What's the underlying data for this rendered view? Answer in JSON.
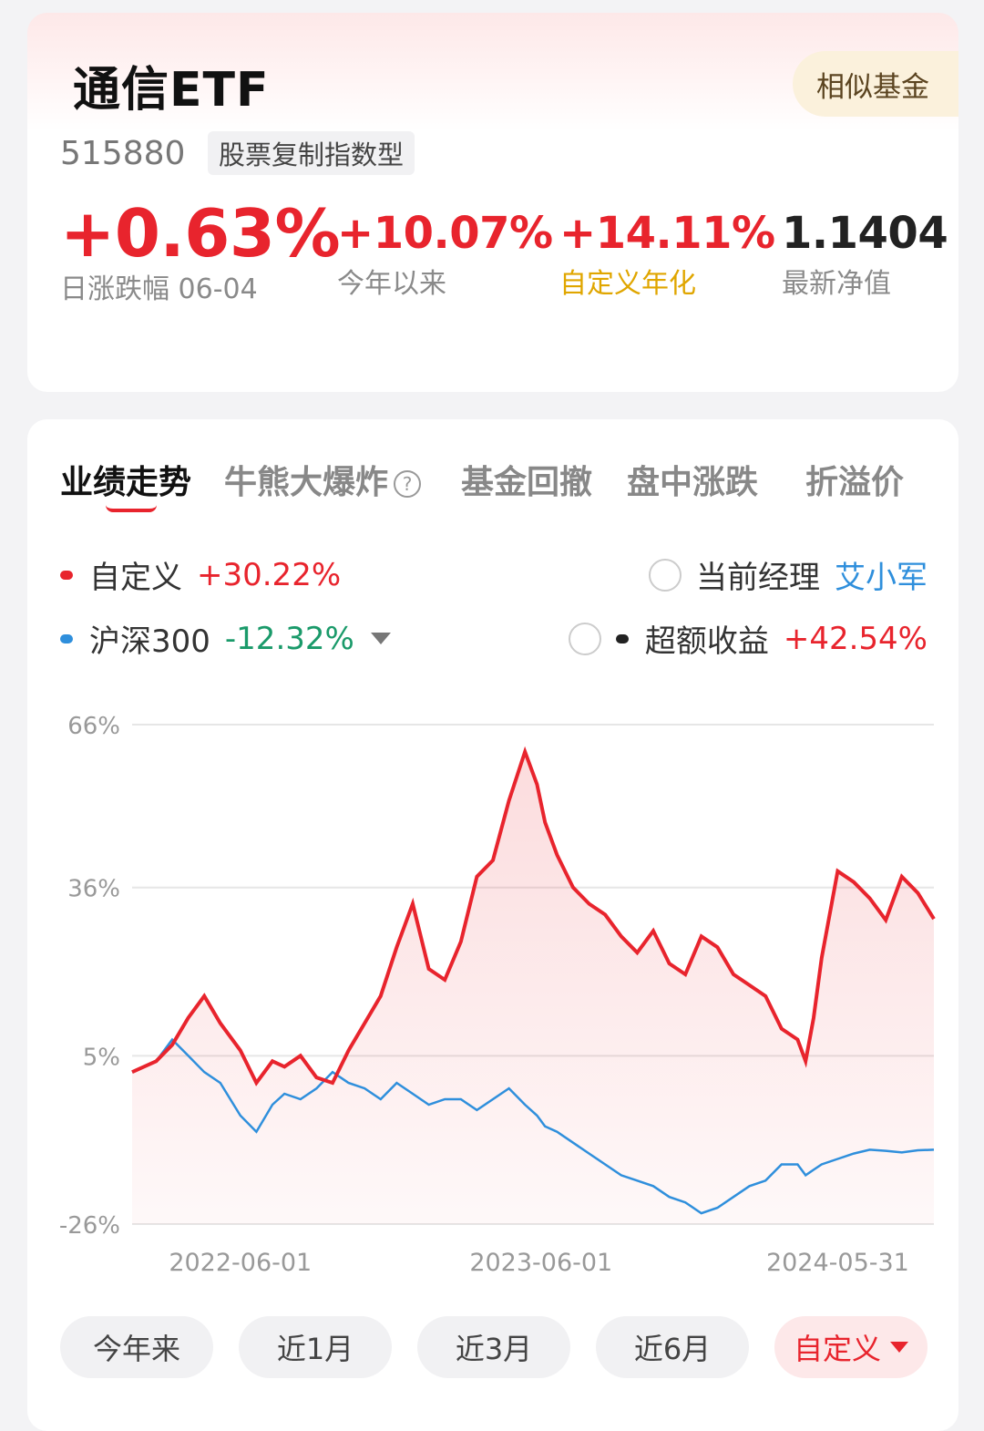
{
  "fund": {
    "name": "通信ETF",
    "similar_button": "相似基金",
    "code": "515880",
    "type": "股票复制指数型"
  },
  "metrics": [
    {
      "value": "+0.63%",
      "label": "日涨跌幅 06-04"
    },
    {
      "value": "+10.07%",
      "label": "今年以来"
    },
    {
      "value": "+14.11%",
      "label": "自定义年化"
    },
    {
      "value": "1.1404",
      "label": "最新净值"
    }
  ],
  "tabs": [
    "业绩走势",
    "牛熊大爆炸",
    "基金回撤",
    "盘中涨跌",
    "折溢价"
  ],
  "legend": {
    "custom": {
      "label": "自定义",
      "value": "+30.22%"
    },
    "index": {
      "label": "沪深300",
      "value": "-12.32%"
    },
    "manager": {
      "label": "当前经理",
      "name": "艾小军"
    },
    "excess": {
      "label": "超额收益",
      "value": "+42.54%"
    }
  },
  "ranges": [
    "今年来",
    "近1月",
    "近3月",
    "近6月",
    "自定义"
  ],
  "colors": {
    "red": "#e8242d",
    "blue": "#2f8fdc",
    "green": "#1a9a6a",
    "gold": "#e0a600"
  },
  "chart_data": {
    "type": "line",
    "y_tick_labels": [
      "66%",
      "36%",
      "5%",
      "-26%"
    ],
    "y_ticks": [
      66,
      36,
      5,
      -26
    ],
    "ylim": [
      -26,
      66
    ],
    "x_tick_labels": [
      "2022-06-01",
      "2023-06-01",
      "2024-05-31"
    ],
    "x_ticks": [
      0.135,
      0.51,
      0.88
    ],
    "x": [
      0,
      0.03,
      0.05,
      0.07,
      0.09,
      0.11,
      0.135,
      0.155,
      0.175,
      0.19,
      0.21,
      0.23,
      0.25,
      0.27,
      0.29,
      0.31,
      0.33,
      0.35,
      0.37,
      0.39,
      0.41,
      0.43,
      0.45,
      0.47,
      0.49,
      0.505,
      0.515,
      0.53,
      0.55,
      0.57,
      0.59,
      0.61,
      0.63,
      0.65,
      0.67,
      0.69,
      0.71,
      0.73,
      0.75,
      0.77,
      0.79,
      0.81,
      0.83,
      0.84,
      0.85,
      0.86,
      0.88,
      0.9,
      0.92,
      0.94,
      0.96,
      0.98,
      1.0
    ],
    "series": [
      {
        "name": "自定义",
        "color": "#e8242d",
        "values": [
          2,
          4,
          7,
          12,
          16,
          11,
          6,
          0,
          4,
          3,
          5,
          1,
          0,
          6,
          11,
          16,
          25,
          33,
          21,
          19,
          26,
          38,
          41,
          52,
          61,
          55,
          48,
          42,
          36,
          33,
          31,
          27,
          24,
          28,
          22,
          20,
          27,
          25,
          20,
          18,
          16,
          10,
          8,
          4,
          12,
          23,
          39,
          37,
          34,
          30,
          38,
          35,
          30.2
        ]
      },
      {
        "name": "沪深300",
        "color": "#2f8fdc",
        "values": [
          2,
          4,
          8,
          5,
          2,
          0,
          -6,
          -9,
          -4,
          -2,
          -3,
          -1,
          2,
          0,
          -1,
          -3,
          0,
          -2,
          -4,
          -3,
          -3,
          -5,
          -3,
          -1,
          -4,
          -6,
          -8,
          -9,
          -11,
          -13,
          -15,
          -17,
          -18,
          -19,
          -21,
          -22,
          -24,
          -23,
          -21,
          -19,
          -18,
          -15,
          -15,
          -17,
          -16,
          -15,
          -14,
          -13,
          -12.3,
          -12.5,
          -12.8,
          -12.4,
          -12.3
        ]
      }
    ]
  }
}
